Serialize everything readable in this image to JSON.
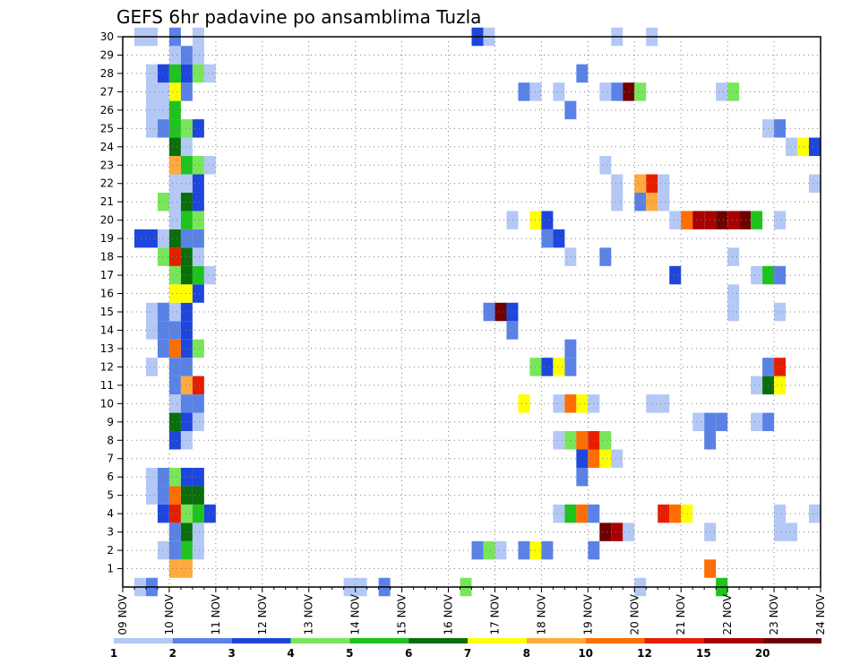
{
  "chart_data": {
    "type": "heatmap",
    "title": "GEFS 6hr padavine po ansamblima Tuzla",
    "y_ticks": [
      "1",
      "2",
      "3",
      "4",
      "5",
      "6",
      "7",
      "8",
      "9",
      "10",
      "11",
      "12",
      "13",
      "14",
      "15",
      "16",
      "17",
      "18",
      "19",
      "20",
      "21",
      "22",
      "23",
      "24",
      "25",
      "26",
      "27",
      "28",
      "29",
      "30"
    ],
    "x_ticks": [
      "09 NOV",
      "10 NOV",
      "11 NOV",
      "12 NOV",
      "13 NOV",
      "14 NOV",
      "15 NOV",
      "16 NOV",
      "17 NOV",
      "18 NOV",
      "19 NOV",
      "20 NOV",
      "21 NOV",
      "22 NOV",
      "23 NOV",
      "24 NOV"
    ],
    "x_range": [
      0,
      60
    ],
    "y_range": [
      0,
      30
    ],
    "grid": true,
    "colorbar": {
      "labels": [
        "1",
        "2",
        "3",
        "4",
        "5",
        "6",
        "7",
        "8",
        "10",
        "12",
        "15",
        "20"
      ],
      "colors": [
        "#b4c8f5",
        "#5a82e6",
        "#1e46dc",
        "#78e65a",
        "#1ec31e",
        "#0a6e0a",
        "#ffff00",
        "#ffaa3c",
        "#ff6e00",
        "#e61e00",
        "#aa0000",
        "#6e0000"
      ]
    },
    "cells": [
      [
        1,
        0,
        1
      ],
      [
        2,
        0,
        2
      ],
      [
        19,
        0,
        1
      ],
      [
        20,
        0,
        1
      ],
      [
        22,
        0,
        2
      ],
      [
        29,
        0,
        4
      ],
      [
        44,
        0,
        1
      ],
      [
        51,
        0,
        5
      ],
      [
        4,
        1,
        8
      ],
      [
        5,
        1,
        8
      ],
      [
        50,
        1,
        9
      ],
      [
        3,
        2,
        1
      ],
      [
        4,
        2,
        2
      ],
      [
        5,
        2,
        5
      ],
      [
        6,
        2,
        1
      ],
      [
        30,
        2,
        2
      ],
      [
        31,
        2,
        4
      ],
      [
        32,
        2,
        1
      ],
      [
        34,
        2,
        2
      ],
      [
        35,
        2,
        7
      ],
      [
        36,
        2,
        2
      ],
      [
        40,
        2,
        2
      ],
      [
        4,
        3,
        2
      ],
      [
        5,
        3,
        6
      ],
      [
        6,
        3,
        1
      ],
      [
        41,
        3,
        12
      ],
      [
        42,
        3,
        11
      ],
      [
        43,
        3,
        1
      ],
      [
        50,
        3,
        1
      ],
      [
        56,
        3,
        1
      ],
      [
        57,
        3,
        1
      ],
      [
        3,
        4,
        3
      ],
      [
        4,
        4,
        10
      ],
      [
        5,
        4,
        4
      ],
      [
        6,
        4,
        5
      ],
      [
        7,
        4,
        3
      ],
      [
        37,
        4,
        1
      ],
      [
        38,
        4,
        5
      ],
      [
        39,
        4,
        9
      ],
      [
        40,
        4,
        2
      ],
      [
        46,
        4,
        10
      ],
      [
        47,
        4,
        9
      ],
      [
        48,
        4,
        7
      ],
      [
        56,
        4,
        1
      ],
      [
        59,
        4,
        1
      ],
      [
        2,
        5,
        1
      ],
      [
        3,
        5,
        2
      ],
      [
        4,
        5,
        9
      ],
      [
        5,
        5,
        6
      ],
      [
        6,
        5,
        6
      ],
      [
        2,
        6,
        1
      ],
      [
        3,
        6,
        2
      ],
      [
        4,
        6,
        4
      ],
      [
        5,
        6,
        3
      ],
      [
        6,
        6,
        3
      ],
      [
        39,
        6,
        2
      ],
      [
        39,
        7,
        3
      ],
      [
        40,
        7,
        9
      ],
      [
        41,
        7,
        7
      ],
      [
        42,
        7,
        1
      ],
      [
        4,
        8,
        3
      ],
      [
        5,
        8,
        1
      ],
      [
        37,
        8,
        1
      ],
      [
        38,
        8,
        4
      ],
      [
        39,
        8,
        9
      ],
      [
        40,
        8,
        10
      ],
      [
        41,
        8,
        4
      ],
      [
        50,
        8,
        2
      ],
      [
        4,
        9,
        6
      ],
      [
        5,
        9,
        3
      ],
      [
        6,
        9,
        1
      ],
      [
        49,
        9,
        1
      ],
      [
        50,
        9,
        2
      ],
      [
        51,
        9,
        2
      ],
      [
        54,
        9,
        1
      ],
      [
        55,
        9,
        2
      ],
      [
        4,
        10,
        1
      ],
      [
        5,
        10,
        2
      ],
      [
        6,
        10,
        2
      ],
      [
        34,
        10,
        7
      ],
      [
        37,
        10,
        1
      ],
      [
        38,
        10,
        9
      ],
      [
        39,
        10,
        7
      ],
      [
        40,
        10,
        1
      ],
      [
        45,
        10,
        1
      ],
      [
        46,
        10,
        1
      ],
      [
        4,
        11,
        2
      ],
      [
        5,
        11,
        8
      ],
      [
        6,
        11,
        10
      ],
      [
        54,
        11,
        1
      ],
      [
        55,
        11,
        6
      ],
      [
        56,
        11,
        7
      ],
      [
        2,
        12,
        1
      ],
      [
        4,
        12,
        2
      ],
      [
        5,
        12,
        2
      ],
      [
        35,
        12,
        4
      ],
      [
        36,
        12,
        3
      ],
      [
        37,
        12,
        7
      ],
      [
        38,
        12,
        2
      ],
      [
        55,
        12,
        2
      ],
      [
        56,
        12,
        10
      ],
      [
        3,
        13,
        2
      ],
      [
        4,
        13,
        9
      ],
      [
        5,
        13,
        3
      ],
      [
        6,
        13,
        4
      ],
      [
        38,
        13,
        2
      ],
      [
        2,
        14,
        1
      ],
      [
        3,
        14,
        2
      ],
      [
        4,
        14,
        2
      ],
      [
        5,
        14,
        3
      ],
      [
        33,
        14,
        2
      ],
      [
        2,
        15,
        1
      ],
      [
        3,
        15,
        2
      ],
      [
        4,
        15,
        1
      ],
      [
        5,
        15,
        3
      ],
      [
        31,
        15,
        2
      ],
      [
        32,
        15,
        12
      ],
      [
        33,
        15,
        3
      ],
      [
        52,
        15,
        1
      ],
      [
        56,
        15,
        1
      ],
      [
        4,
        16,
        7
      ],
      [
        5,
        16,
        7
      ],
      [
        6,
        16,
        3
      ],
      [
        52,
        16,
        1
      ],
      [
        4,
        17,
        4
      ],
      [
        5,
        17,
        6
      ],
      [
        6,
        17,
        5
      ],
      [
        7,
        17,
        1
      ],
      [
        47,
        17,
        3
      ],
      [
        54,
        17,
        1
      ],
      [
        55,
        17,
        5
      ],
      [
        56,
        17,
        2
      ],
      [
        3,
        18,
        4
      ],
      [
        4,
        18,
        10
      ],
      [
        5,
        18,
        6
      ],
      [
        6,
        18,
        1
      ],
      [
        38,
        18,
        1
      ],
      [
        41,
        18,
        2
      ],
      [
        52,
        18,
        1
      ],
      [
        1,
        19,
        3
      ],
      [
        2,
        19,
        3
      ],
      [
        3,
        19,
        1
      ],
      [
        4,
        19,
        6
      ],
      [
        5,
        19,
        2
      ],
      [
        6,
        19,
        2
      ],
      [
        36,
        19,
        2
      ],
      [
        37,
        19,
        3
      ],
      [
        4,
        20,
        1
      ],
      [
        5,
        20,
        5
      ],
      [
        6,
        20,
        4
      ],
      [
        33,
        20,
        1
      ],
      [
        35,
        20,
        7
      ],
      [
        36,
        20,
        3
      ],
      [
        47,
        20,
        1
      ],
      [
        48,
        20,
        9
      ],
      [
        49,
        20,
        11
      ],
      [
        50,
        20,
        11
      ],
      [
        51,
        20,
        12
      ],
      [
        52,
        20,
        11
      ],
      [
        53,
        20,
        12
      ],
      [
        54,
        20,
        5
      ],
      [
        56,
        20,
        1
      ],
      [
        3,
        21,
        4
      ],
      [
        4,
        21,
        1
      ],
      [
        5,
        21,
        6
      ],
      [
        6,
        21,
        3
      ],
      [
        42,
        21,
        1
      ],
      [
        44,
        21,
        2
      ],
      [
        45,
        21,
        8
      ],
      [
        46,
        21,
        1
      ],
      [
        4,
        22,
        1
      ],
      [
        5,
        22,
        1
      ],
      [
        6,
        22,
        3
      ],
      [
        42,
        22,
        1
      ],
      [
        44,
        22,
        8
      ],
      [
        45,
        22,
        10
      ],
      [
        46,
        22,
        1
      ],
      [
        59,
        22,
        1
      ],
      [
        4,
        23,
        8
      ],
      [
        5,
        23,
        5
      ],
      [
        6,
        23,
        4
      ],
      [
        7,
        23,
        1
      ],
      [
        41,
        23,
        1
      ],
      [
        4,
        24,
        6
      ],
      [
        5,
        24,
        1
      ],
      [
        57,
        24,
        1
      ],
      [
        58,
        24,
        7
      ],
      [
        59,
        24,
        3
      ],
      [
        2,
        25,
        1
      ],
      [
        3,
        25,
        2
      ],
      [
        4,
        25,
        5
      ],
      [
        5,
        25,
        4
      ],
      [
        6,
        25,
        3
      ],
      [
        55,
        25,
        1
      ],
      [
        56,
        25,
        2
      ],
      [
        2,
        26,
        1
      ],
      [
        3,
        26,
        1
      ],
      [
        4,
        26,
        5
      ],
      [
        38,
        26,
        2
      ],
      [
        2,
        27,
        1
      ],
      [
        3,
        27,
        1
      ],
      [
        4,
        27,
        7
      ],
      [
        5,
        27,
        2
      ],
      [
        34,
        27,
        2
      ],
      [
        35,
        27,
        1
      ],
      [
        37,
        27,
        1
      ],
      [
        41,
        27,
        1
      ],
      [
        42,
        27,
        2
      ],
      [
        43,
        27,
        12
      ],
      [
        44,
        27,
        4
      ],
      [
        51,
        27,
        1
      ],
      [
        52,
        27,
        4
      ],
      [
        2,
        28,
        1
      ],
      [
        3,
        28,
        3
      ],
      [
        4,
        28,
        5
      ],
      [
        5,
        28,
        3
      ],
      [
        6,
        28,
        4
      ],
      [
        7,
        28,
        1
      ],
      [
        39,
        28,
        2
      ],
      [
        4,
        29,
        1
      ],
      [
        5,
        29,
        2
      ],
      [
        6,
        29,
        1
      ],
      [
        1,
        30,
        1
      ],
      [
        2,
        30,
        1
      ],
      [
        4,
        30,
        2
      ],
      [
        6,
        30,
        1
      ],
      [
        30,
        30,
        3
      ],
      [
        31,
        30,
        1
      ],
      [
        42,
        30,
        1
      ],
      [
        45,
        30,
        1
      ]
    ]
  }
}
